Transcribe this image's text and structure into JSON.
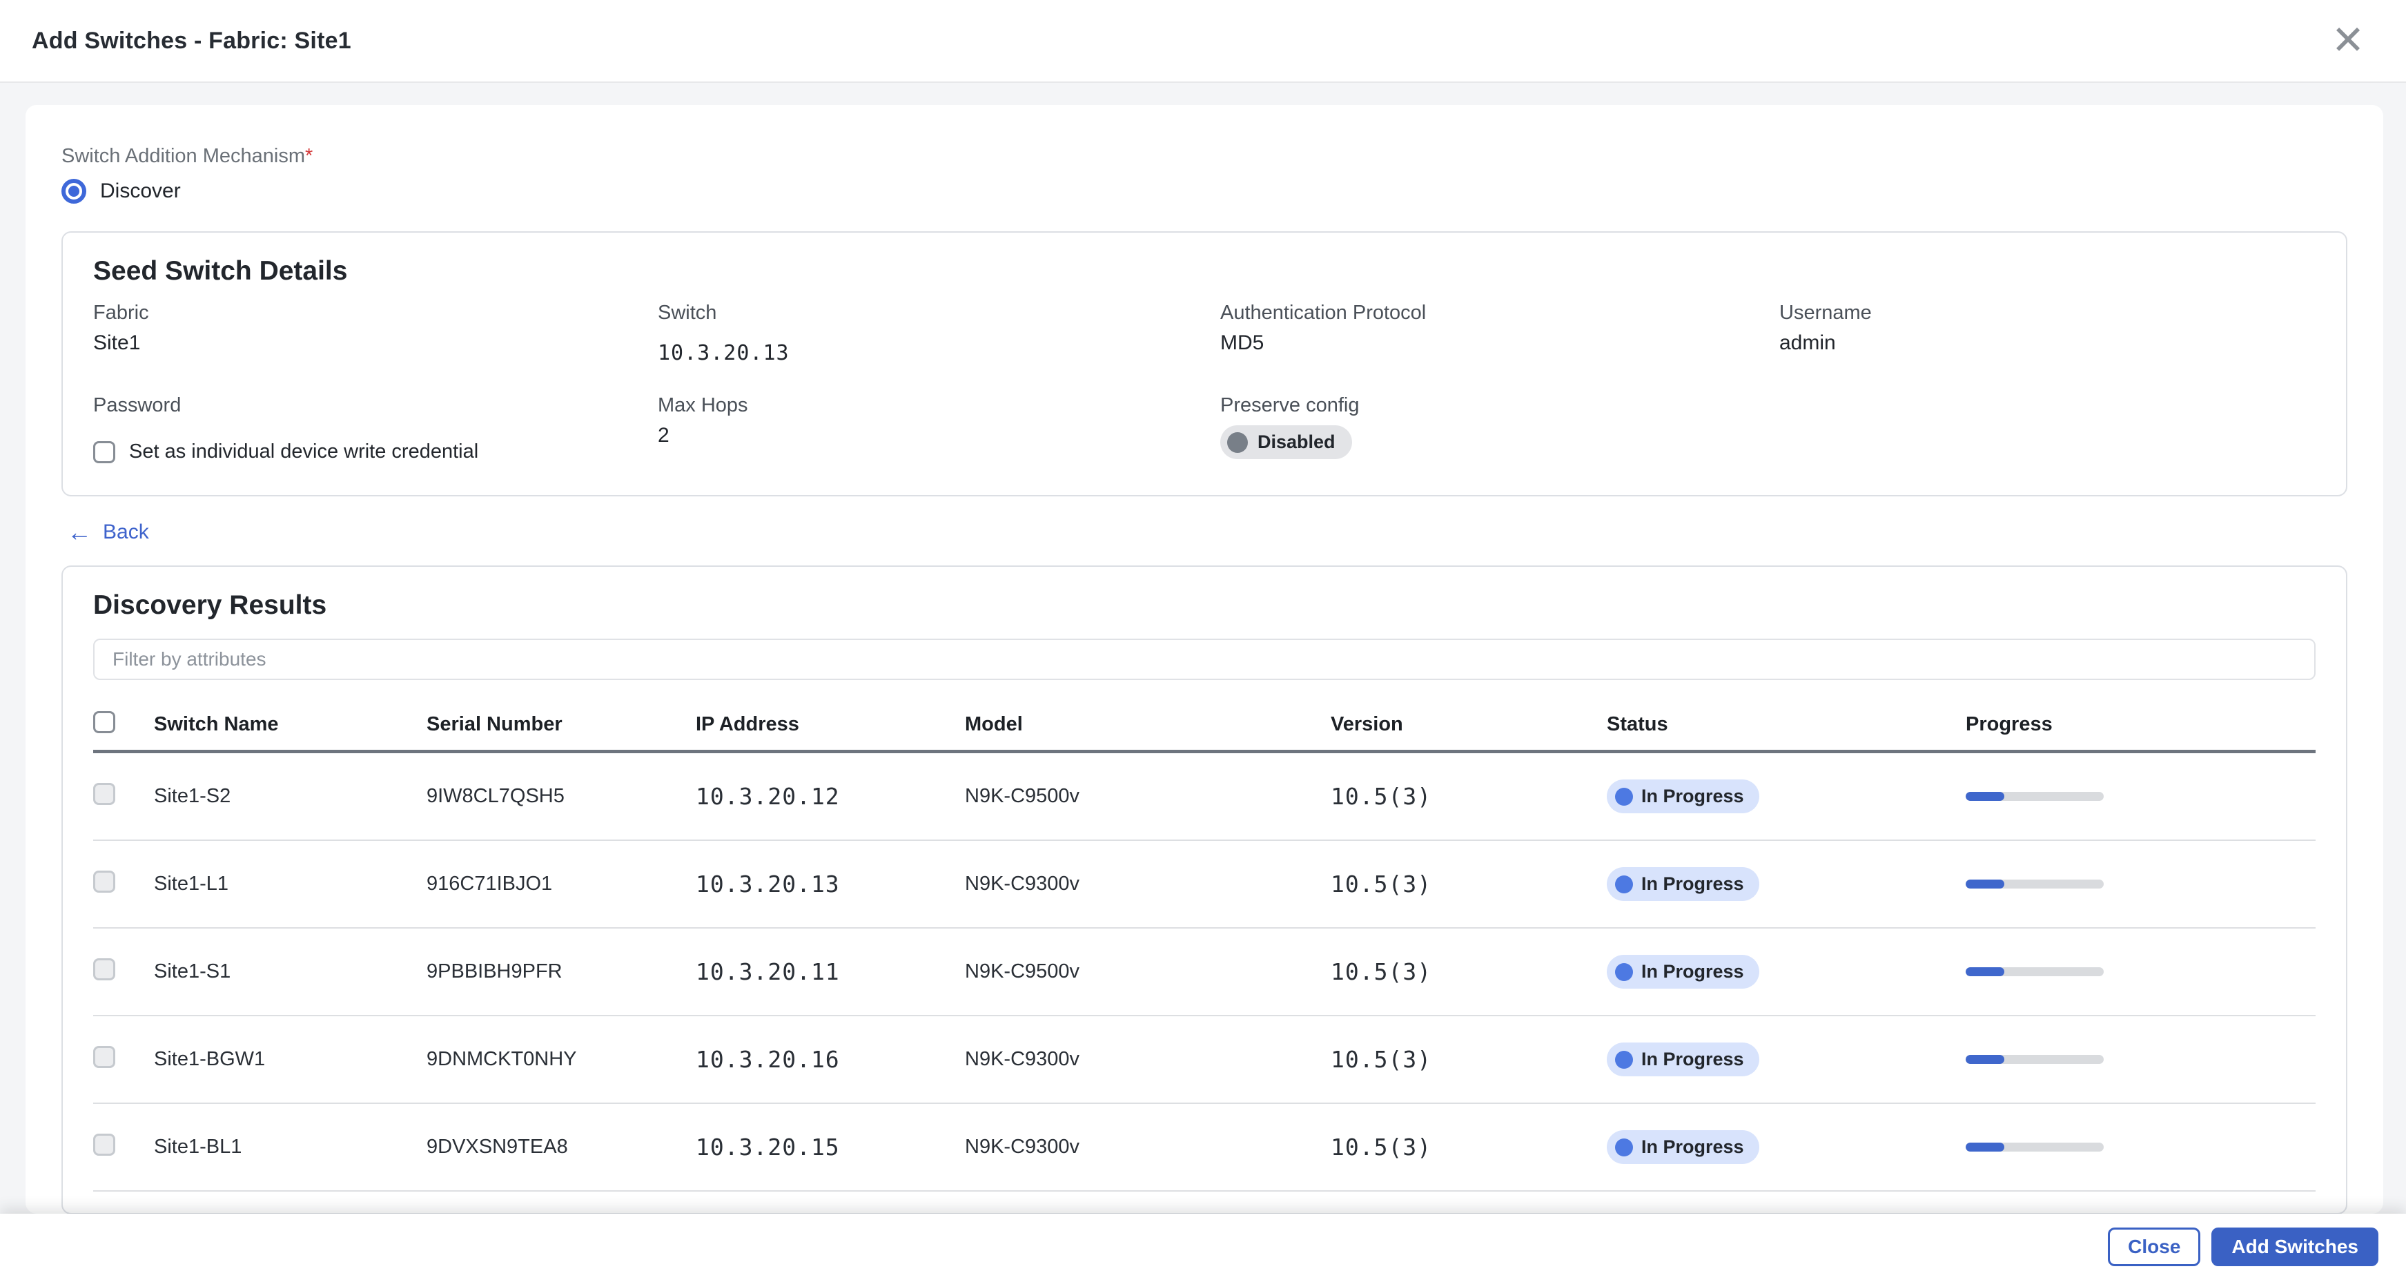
{
  "header": {
    "title": "Add Switches - Fabric: Site1",
    "close_glyph": "✕"
  },
  "mechanism": {
    "label": "Switch Addition Mechanism",
    "required_mark": "*",
    "selected_option": "Discover"
  },
  "seed": {
    "title": "Seed Switch Details",
    "fabric_label": "Fabric",
    "fabric_value": "Site1",
    "switch_label": "Switch",
    "switch_value": "10.3.20.13",
    "auth_label": "Authentication Protocol",
    "auth_value": "MD5",
    "username_label": "Username",
    "username_value": "admin",
    "password_label": "Password",
    "max_hops_label": "Max Hops",
    "max_hops_value": "2",
    "preserve_label": "Preserve config",
    "preserve_value": "Disabled",
    "write_credential_label": "Set as individual device write credential"
  },
  "back_link": {
    "arrow": "←",
    "label": "Back"
  },
  "discovery": {
    "title": "Discovery Results",
    "filter_placeholder": "Filter by attributes",
    "columns": {
      "name": "Switch Name",
      "serial": "Serial Number",
      "ip": "IP Address",
      "model": "Model",
      "version": "Version",
      "status": "Status",
      "progress": "Progress"
    },
    "rows": [
      {
        "name": "Site1-S2",
        "serial": "9IW8CL7QSH5",
        "ip": "10.3.20.12",
        "model": "N9K-C9500v",
        "version": "10.5(3)",
        "status": "In Progress",
        "progress_pct": 28
      },
      {
        "name": "Site1-L1",
        "serial": "916C71IBJO1",
        "ip": "10.3.20.13",
        "model": "N9K-C9300v",
        "version": "10.5(3)",
        "status": "In Progress",
        "progress_pct": 28
      },
      {
        "name": "Site1-S1",
        "serial": "9PBBIBH9PFR",
        "ip": "10.3.20.11",
        "model": "N9K-C9500v",
        "version": "10.5(3)",
        "status": "In Progress",
        "progress_pct": 28
      },
      {
        "name": "Site1-BGW1",
        "serial": "9DNMCKT0NHY",
        "ip": "10.3.20.16",
        "model": "N9K-C9300v",
        "version": "10.5(3)",
        "status": "In Progress",
        "progress_pct": 28
      },
      {
        "name": "Site1-BL1",
        "serial": "9DVXSN9TEA8",
        "ip": "10.3.20.15",
        "model": "N9K-C9300v",
        "version": "10.5(3)",
        "status": "In Progress",
        "progress_pct": 28
      }
    ]
  },
  "footer": {
    "close_label": "Close",
    "add_label": "Add Switches"
  },
  "colors": {
    "accent_blue": "#3a61c4",
    "radio_blue": "#3e68d9",
    "badge_bg": "#d8e3fc",
    "badge_dot": "#4d79e2",
    "progress_fill": "#3f67cc",
    "value_red": "#f20000",
    "page_bg": "#f4f5f7",
    "table_header_rule": "#6d747e"
  }
}
